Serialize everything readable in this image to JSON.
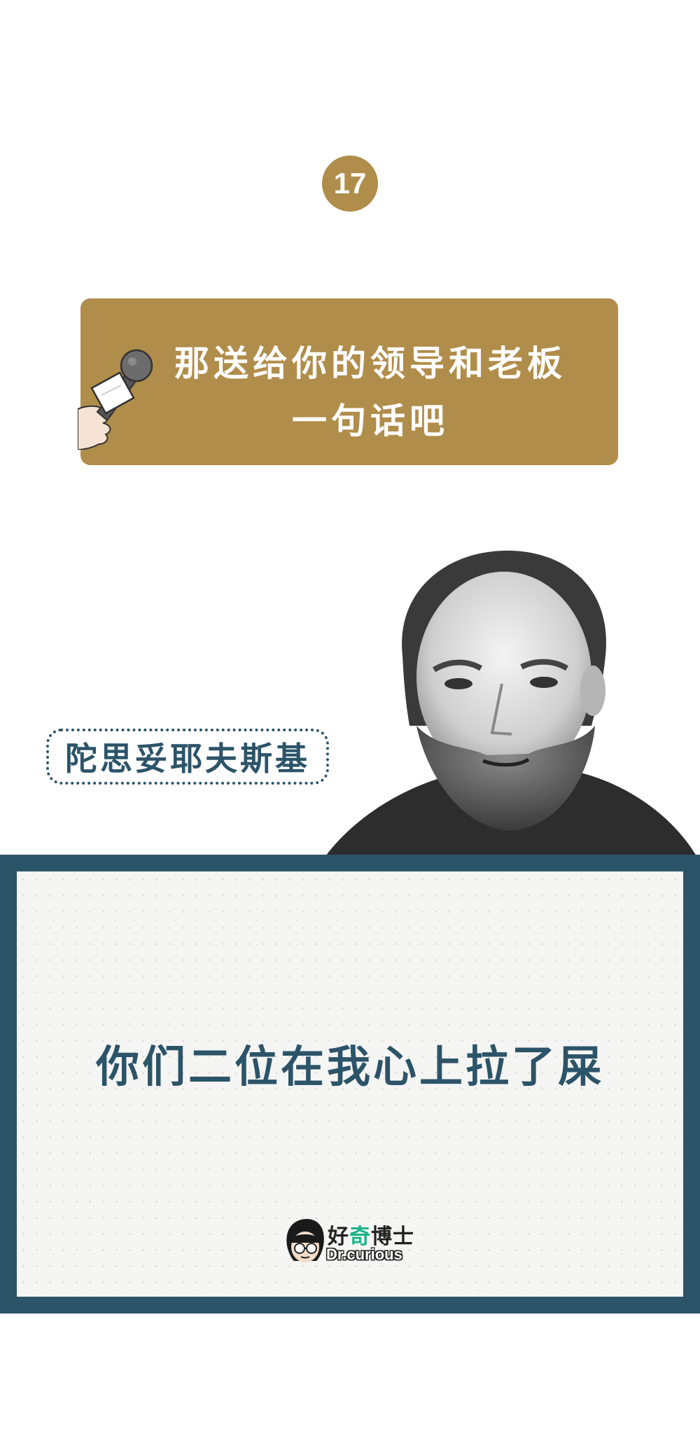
{
  "badge": {
    "number": "17"
  },
  "question": {
    "line1": "那送给你的领导和老板",
    "line2": "一句话吧"
  },
  "person": {
    "name": "陀思妥耶夫斯基"
  },
  "quote": {
    "text": "你们二位在我心上拉了屎"
  },
  "logo": {
    "cn_part1": "好",
    "cn_part2": "奇",
    "cn_part3": "博士",
    "en": "Dr.curious"
  },
  "colors": {
    "accent_gold": "#b08d4a",
    "accent_navy": "#2c5469",
    "logo_green": "#1bb58a"
  },
  "icons": [
    "microphone-icon",
    "portrait-photo",
    "logo-face-icon"
  ]
}
